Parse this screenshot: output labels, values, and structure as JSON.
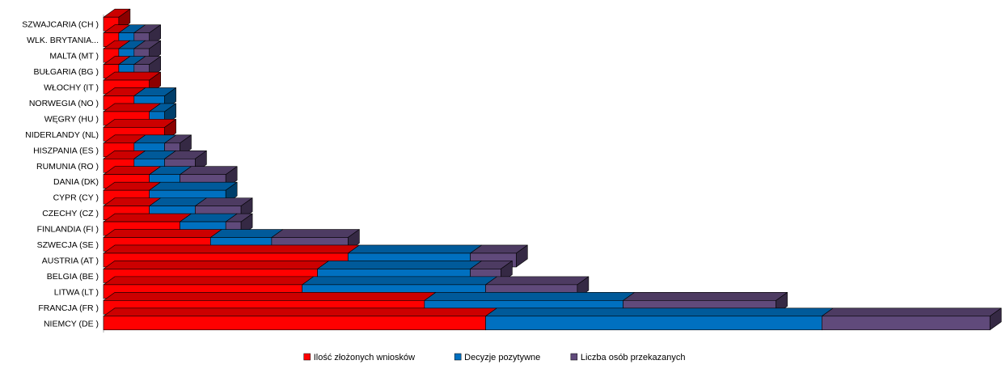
{
  "chart_data": {
    "type": "bar",
    "orientation": "horizontal",
    "stacked": true,
    "style": "3d",
    "categories": [
      "SZWAJCARIA (CH )",
      "WLK. BRYTANIA...",
      "MALTA (MT )",
      "BUŁGARIA (BG )",
      "WŁOCHY (IT )",
      "NORWEGIA (NO )",
      "WĘGRY (HU )",
      "NIDERLANDY (NL)",
      "HISZPANIA (ES )",
      "RUMUNIA (RO )",
      "DANIA (DK)",
      "CYPR (CY )",
      "CZECHY (CZ )",
      "FINLANDIA (FI )",
      "SZWECJA (SE )",
      "AUSTRIA (AT )",
      "BELGIA (BE )",
      "LITWA (LT )",
      "FRANCJA (FR )",
      "NIEMCY (DE )"
    ],
    "series": [
      {
        "name": "Ilość złożonych wniosków",
        "color": "#ff0000",
        "values": [
          1,
          1,
          1,
          1,
          3,
          2,
          3,
          4,
          2,
          2,
          3,
          3,
          3,
          5,
          7,
          16,
          14,
          13,
          21,
          25
        ]
      },
      {
        "name": "Decyzje pozytywne",
        "color": "#0070c0",
        "values": [
          0,
          1,
          1,
          1,
          0,
          2,
          1,
          0,
          2,
          2,
          2,
          5,
          3,
          3,
          4,
          8,
          10,
          12,
          13,
          22
        ]
      },
      {
        "name": "Liczba osób przekazanych",
        "color": "#604a7b",
        "values": [
          0,
          1,
          1,
          1,
          0,
          0,
          0,
          0,
          1,
          2,
          3,
          0,
          3,
          1,
          5,
          3,
          2,
          6,
          10,
          11
        ]
      }
    ],
    "legend_position": "bottom",
    "grid": false
  }
}
